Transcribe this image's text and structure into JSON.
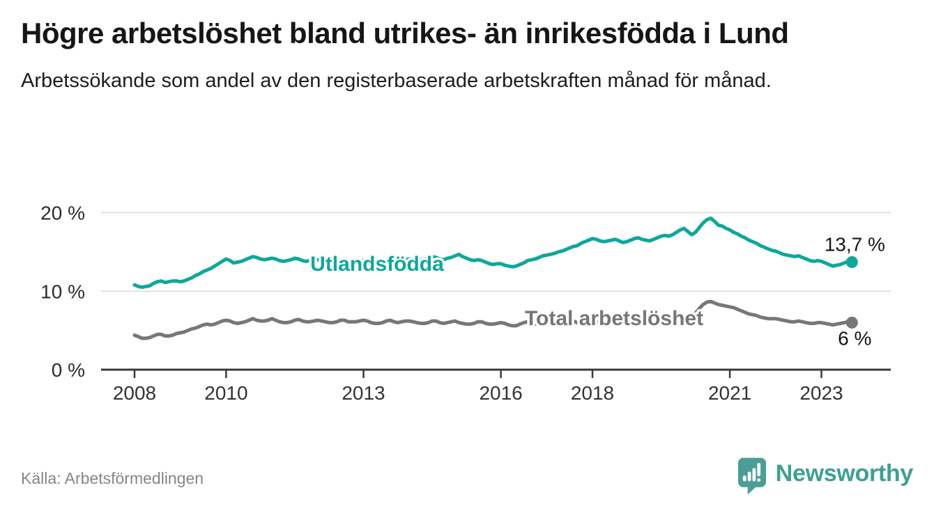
{
  "header": {
    "title": "Högre arbetslöshet bland utrikes- än inrikesfödda i Lund",
    "subtitle": "Arbetssökande som andel av den registerbaserade arbetskraften månad för månad."
  },
  "footer": {
    "source": "Källa: Arbetsförmedlingen",
    "brand": "Newsworthy"
  },
  "logo": {
    "color": "#4a9e96",
    "icon": "speech-bubble-bar-chart"
  },
  "chart_data": {
    "type": "line",
    "title": "Högre arbetslöshet bland utrikes- än inrikesfödda i Lund",
    "subtitle": "Arbetssökande som andel av den registerbaserade arbetskraften månad för månad.",
    "unit": "%",
    "x_start": 2008.0,
    "x_step": 0.0833333,
    "xlim": [
      2007.3,
      2024.5
    ],
    "ylim": [
      0,
      20
    ],
    "grid": "horizontal",
    "x_ticks": [
      {
        "value": 2008,
        "label": "2008"
      },
      {
        "value": 2010,
        "label": "2010"
      },
      {
        "value": 2013,
        "label": "2013"
      },
      {
        "value": 2016,
        "label": "2016"
      },
      {
        "value": 2018,
        "label": "2018"
      },
      {
        "value": 2021,
        "label": "2021"
      },
      {
        "value": 2023,
        "label": "2023"
      }
    ],
    "y_ticks": [
      {
        "value": 0,
        "label": "0 %"
      },
      {
        "value": 10,
        "label": "10 %"
      },
      {
        "value": 20,
        "label": "20 %"
      }
    ],
    "series": [
      {
        "name": "Total arbetslöshet",
        "color": "#76767b",
        "end_label": "6 %",
        "last_value": 6.0,
        "values": [
          4.4,
          4.2,
          4.0,
          4.0,
          4.1,
          4.3,
          4.5,
          4.5,
          4.3,
          4.3,
          4.4,
          4.6,
          4.7,
          4.8,
          5.0,
          5.2,
          5.3,
          5.5,
          5.7,
          5.8,
          5.7,
          5.8,
          6.0,
          6.2,
          6.3,
          6.2,
          6.0,
          5.9,
          6.0,
          6.1,
          6.3,
          6.5,
          6.3,
          6.2,
          6.2,
          6.3,
          6.5,
          6.3,
          6.1,
          6.0,
          6.0,
          6.1,
          6.3,
          6.4,
          6.2,
          6.1,
          6.1,
          6.2,
          6.3,
          6.2,
          6.1,
          6.0,
          6.0,
          6.1,
          6.3,
          6.3,
          6.1,
          6.1,
          6.1,
          6.2,
          6.3,
          6.2,
          6.0,
          5.9,
          5.9,
          6.0,
          6.2,
          6.3,
          6.1,
          6.0,
          6.1,
          6.2,
          6.2,
          6.1,
          6.0,
          5.9,
          5.9,
          6.0,
          6.2,
          6.2,
          6.0,
          5.9,
          6.0,
          6.1,
          6.2,
          6.0,
          5.9,
          5.8,
          5.8,
          5.9,
          6.1,
          6.1,
          5.9,
          5.8,
          5.8,
          5.9,
          6.0,
          5.9,
          5.7,
          5.6,
          5.6,
          5.8,
          6.0,
          6.1,
          5.9,
          5.8,
          5.9,
          6.0,
          6.1,
          6.0,
          5.9,
          5.8,
          5.8,
          5.9,
          6.1,
          6.2,
          6.0,
          5.9,
          6.0,
          6.1,
          6.2,
          6.1,
          5.9,
          5.8,
          5.8,
          5.9,
          6.1,
          6.1,
          5.9,
          5.8,
          5.9,
          6.0,
          6.1,
          6.0,
          5.9,
          5.8,
          5.9,
          6.0,
          6.2,
          6.2,
          6.1,
          6.1,
          6.2,
          6.3,
          6.4,
          6.3,
          6.5,
          7.2,
          7.8,
          8.3,
          8.6,
          8.7,
          8.5,
          8.3,
          8.2,
          8.1,
          8.0,
          7.9,
          7.7,
          7.5,
          7.3,
          7.1,
          7.0,
          6.9,
          6.7,
          6.6,
          6.5,
          6.5,
          6.5,
          6.4,
          6.3,
          6.2,
          6.1,
          6.1,
          6.2,
          6.1,
          6.0,
          5.9,
          5.9,
          6.0,
          6.0,
          5.9,
          5.8,
          5.7,
          5.8,
          5.9,
          6.0,
          6.1,
          6.0
        ]
      },
      {
        "name": "Utlandsfödda",
        "color": "#0ea79c",
        "end_label": "13,7 %",
        "last_value": 13.7,
        "values": [
          10.8,
          10.6,
          10.5,
          10.6,
          10.7,
          11.0,
          11.2,
          11.3,
          11.1,
          11.2,
          11.3,
          11.3,
          11.2,
          11.3,
          11.5,
          11.7,
          12.0,
          12.2,
          12.5,
          12.7,
          12.9,
          13.2,
          13.5,
          13.8,
          14.1,
          13.9,
          13.6,
          13.7,
          13.8,
          14.0,
          14.2,
          14.4,
          14.3,
          14.1,
          14.0,
          14.1,
          14.2,
          14.1,
          13.9,
          13.8,
          13.9,
          14.0,
          14.2,
          14.1,
          13.9,
          13.8,
          13.9,
          14.0,
          14.0,
          13.9,
          13.8,
          13.7,
          13.8,
          13.9,
          14.0,
          14.0,
          13.8,
          13.7,
          13.8,
          13.9,
          13.9,
          13.8,
          13.6,
          13.5,
          13.5,
          13.6,
          13.8,
          13.9,
          13.7,
          13.8,
          13.9,
          14.0,
          14.1,
          14.0,
          13.9,
          14.0,
          14.1,
          14.2,
          14.4,
          14.3,
          14.1,
          14.0,
          14.2,
          14.3,
          14.5,
          14.7,
          14.4,
          14.2,
          14.0,
          13.9,
          14.0,
          13.9,
          13.7,
          13.5,
          13.4,
          13.5,
          13.5,
          13.3,
          13.2,
          13.1,
          13.2,
          13.4,
          13.6,
          13.9,
          14.0,
          14.1,
          14.3,
          14.5,
          14.6,
          14.7,
          14.8,
          15.0,
          15.1,
          15.3,
          15.5,
          15.7,
          15.8,
          16.1,
          16.3,
          16.5,
          16.7,
          16.6,
          16.4,
          16.3,
          16.4,
          16.5,
          16.6,
          16.4,
          16.2,
          16.3,
          16.5,
          16.7,
          16.8,
          16.6,
          16.5,
          16.4,
          16.6,
          16.8,
          17.0,
          17.1,
          17.0,
          17.2,
          17.5,
          17.8,
          18.0,
          17.6,
          17.2,
          17.5,
          18.1,
          18.7,
          19.1,
          19.3,
          18.9,
          18.4,
          18.3,
          18.0,
          17.8,
          17.5,
          17.3,
          17.0,
          16.8,
          16.5,
          16.3,
          16.1,
          15.8,
          15.6,
          15.4,
          15.2,
          15.1,
          14.9,
          14.7,
          14.6,
          14.5,
          14.4,
          14.5,
          14.3,
          14.1,
          13.9,
          13.8,
          13.9,
          13.8,
          13.6,
          13.4,
          13.2,
          13.3,
          13.4,
          13.6,
          13.8,
          13.7
        ]
      }
    ],
    "source": "Källa: Arbetsförmedlingen",
    "legend_position": "inline-labels"
  }
}
